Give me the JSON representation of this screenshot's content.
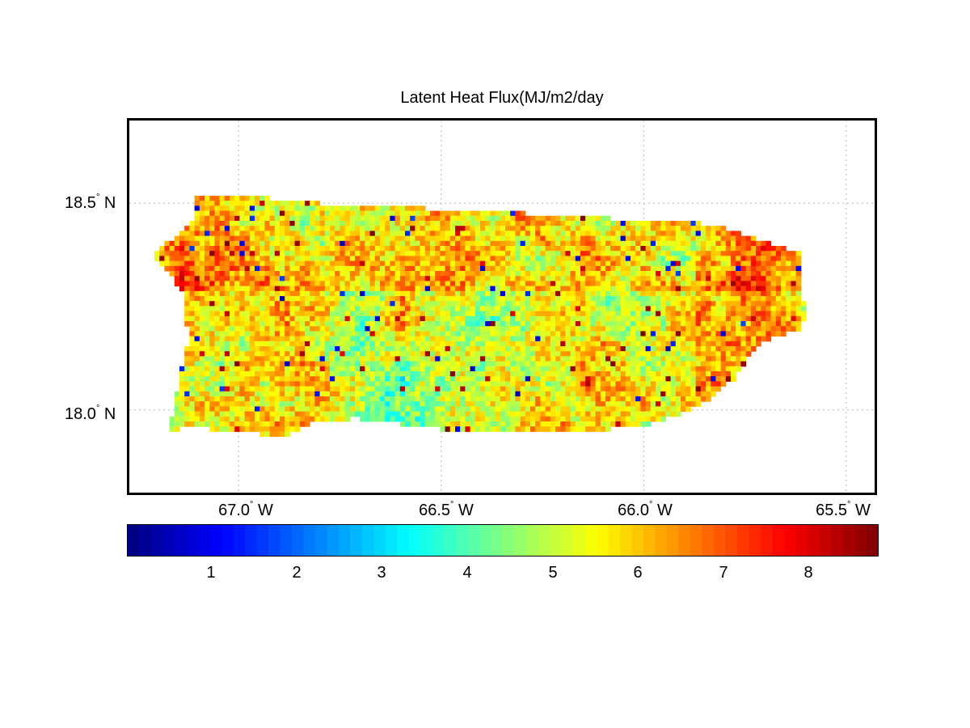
{
  "chart_data": {
    "type": "heatmap",
    "title": "Latent Heat Flux(MJ/m2/day",
    "region_shape": "Puerto Rico island outline, gridded pixel values",
    "xlim": [
      -67.27,
      -65.43
    ],
    "ylim": [
      17.8,
      18.7
    ],
    "grid": true,
    "x_ticks": [
      {
        "value": -67.0,
        "num": "67.0",
        "hemi": "W"
      },
      {
        "value": -66.5,
        "num": "66.5",
        "hemi": "W"
      },
      {
        "value": -66.0,
        "num": "66.0",
        "hemi": "W"
      },
      {
        "value": -65.5,
        "num": "65.5",
        "hemi": "W"
      }
    ],
    "y_ticks": [
      {
        "value": 18.5,
        "num": "18.5",
        "hemi": "N"
      },
      {
        "value": 18.0,
        "num": "18.0",
        "hemi": "N"
      }
    ],
    "colormap": "jet",
    "colorbar": {
      "placement": "bottom",
      "range": [
        0,
        8.8
      ],
      "ticks": [
        "1",
        "2",
        "3",
        "4",
        "5",
        "6",
        "7",
        "8"
      ],
      "tick_values": [
        1,
        2,
        3,
        4,
        5,
        6,
        7,
        8
      ]
    },
    "value_distribution": {
      "min": 0.5,
      "max": 8.8,
      "typical_low": 3.5,
      "typical_high": 6.5
    }
  },
  "degree_symbol": "°"
}
